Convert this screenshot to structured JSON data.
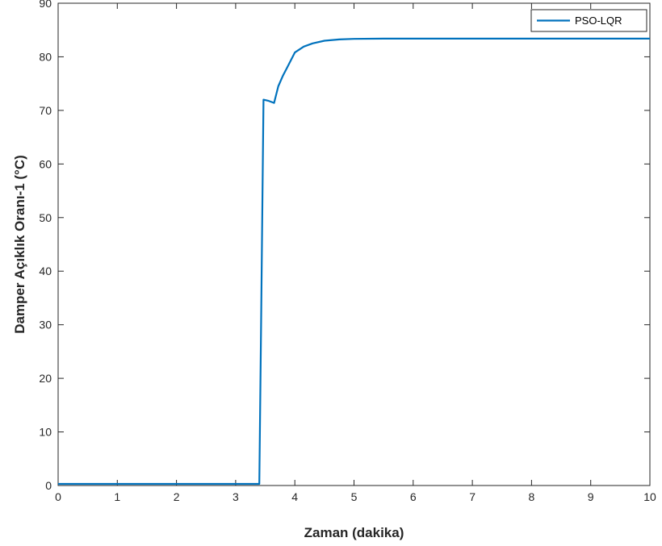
{
  "chart_data": {
    "type": "line",
    "title": "",
    "xlabel": "Zaman (dakika)",
    "ylabel": "Damper Açıklık Oranı-1 (°C)",
    "xlim": [
      0,
      10
    ],
    "ylim": [
      0,
      90
    ],
    "xticks": [
      0,
      1,
      2,
      3,
      4,
      5,
      6,
      7,
      8,
      9,
      10
    ],
    "yticks": [
      0,
      10,
      20,
      30,
      40,
      50,
      60,
      70,
      80,
      90
    ],
    "grid": false,
    "legend_position": "top-right",
    "series": [
      {
        "name": "PSO-LQR",
        "color": "#0072BD",
        "x": [
          0,
          3.4,
          3.43,
          3.47,
          3.55,
          3.65,
          3.72,
          3.8,
          3.88,
          4.0,
          4.15,
          4.3,
          4.5,
          4.75,
          5.0,
          5.5,
          6.0,
          7.0,
          8.0,
          9.0,
          10.0
        ],
        "y": [
          0.3,
          0.3,
          30,
          72,
          71.8,
          71.4,
          74.5,
          76.5,
          78.2,
          80.8,
          81.9,
          82.5,
          83.0,
          83.25,
          83.35,
          83.4,
          83.4,
          83.4,
          83.4,
          83.4,
          83.4
        ]
      }
    ]
  }
}
